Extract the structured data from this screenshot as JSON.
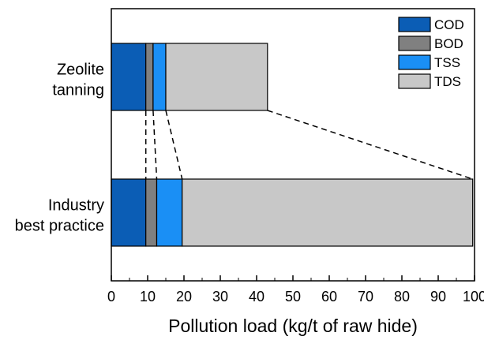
{
  "chart_data": {
    "type": "bar",
    "orientation": "horizontal",
    "stacked": true,
    "categories": [
      "Zeolite tanning",
      "Industry best practice"
    ],
    "category_lines": [
      [
        "Zeolite",
        "tanning"
      ],
      [
        "Industry",
        "best practice"
      ]
    ],
    "series": [
      {
        "name": "COD",
        "color": "#0b5db5",
        "values": [
          9.5,
          9.5
        ]
      },
      {
        "name": "BOD",
        "color": "#808080",
        "values": [
          2.0,
          3.0
        ]
      },
      {
        "name": "TSS",
        "color": "#1a8ff5",
        "values": [
          3.5,
          7.0
        ]
      },
      {
        "name": "TDS",
        "color": "#c8c8c8",
        "values": [
          28.0,
          80.0
        ]
      }
    ],
    "title": "",
    "xlabel": "Pollution load (kg/t of raw hide)",
    "ylabel": "",
    "xlim": [
      0,
      100
    ],
    "xticks": [
      0,
      10,
      20,
      30,
      40,
      50,
      60,
      70,
      80,
      90,
      100
    ],
    "grid": false,
    "legend_position": "top-right",
    "connector_lines": "dashed"
  }
}
